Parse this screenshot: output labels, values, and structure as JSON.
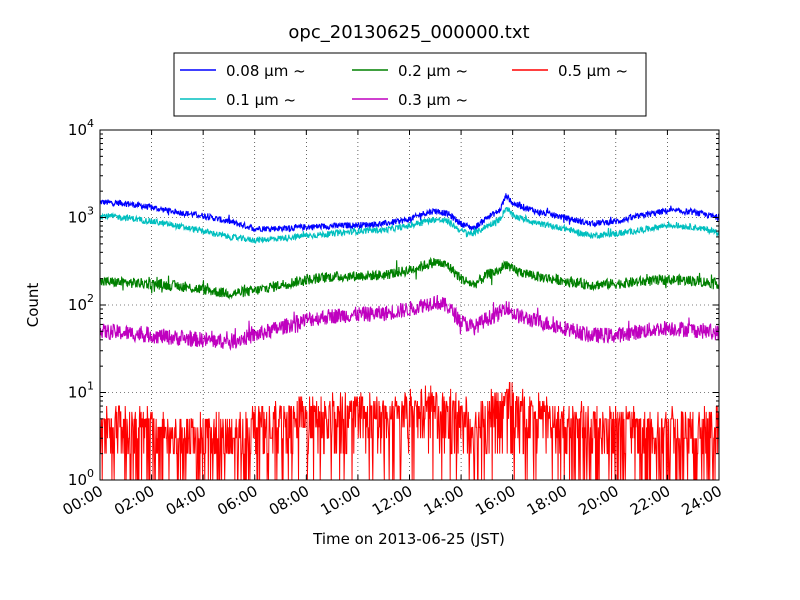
{
  "chart_data": {
    "type": "line",
    "title": "opc_20130625_000000.txt",
    "xlabel": "Time on 2013-06-25 (JST)",
    "ylabel": "Count",
    "x_range": [
      "00:00",
      "24:00"
    ],
    "x_ticks": [
      "00:00",
      "02:00",
      "04:00",
      "06:00",
      "08:00",
      "10:00",
      "12:00",
      "14:00",
      "16:00",
      "18:00",
      "20:00",
      "22:00",
      "24:00"
    ],
    "y_scale": "log",
    "ylim": [
      1,
      10000
    ],
    "y_ticks": [
      {
        "base": "10",
        "exp": "0"
      },
      {
        "base": "10",
        "exp": "1"
      },
      {
        "base": "10",
        "exp": "2"
      },
      {
        "base": "10",
        "exp": "3"
      },
      {
        "base": "10",
        "exp": "4"
      }
    ],
    "grid": true,
    "legend_placement": "top-center (above plot)",
    "series": [
      {
        "name": "0.08 μm ~",
        "color": "#0000ff",
        "x": [
          "00:00",
          "01:00",
          "02:00",
          "03:00",
          "04:00",
          "05:00",
          "06:00",
          "07:00",
          "08:00",
          "09:00",
          "10:00",
          "11:00",
          "12:00",
          "12:30",
          "13:00",
          "13:30",
          "14:00",
          "14:30",
          "15:00",
          "15:30",
          "15:45",
          "16:00",
          "16:30",
          "17:00",
          "18:00",
          "19:00",
          "20:00",
          "21:00",
          "22:00",
          "23:00",
          "24:00"
        ],
        "values": [
          1500,
          1450,
          1300,
          1150,
          1050,
          900,
          750,
          750,
          780,
          800,
          820,
          850,
          950,
          1100,
          1200,
          1100,
          850,
          750,
          1000,
          1200,
          1800,
          1450,
          1300,
          1150,
          1000,
          850,
          900,
          1050,
          1200,
          1150,
          1000
        ]
      },
      {
        "name": "0.1 μm ~",
        "color": "#00bfbf",
        "x": [
          "00:00",
          "01:00",
          "02:00",
          "03:00",
          "04:00",
          "05:00",
          "06:00",
          "07:00",
          "08:00",
          "09:00",
          "10:00",
          "11:00",
          "12:00",
          "12:30",
          "13:00",
          "13:30",
          "14:00",
          "14:30",
          "15:00",
          "15:30",
          "15:45",
          "16:00",
          "16:30",
          "17:00",
          "18:00",
          "19:00",
          "20:00",
          "21:00",
          "22:00",
          "23:00",
          "24:00"
        ],
        "values": [
          1050,
          1000,
          900,
          800,
          700,
          600,
          550,
          580,
          620,
          650,
          700,
          720,
          800,
          900,
          950,
          900,
          700,
          650,
          800,
          950,
          1300,
          1050,
          950,
          850,
          750,
          620,
          650,
          720,
          820,
          780,
          680
        ]
      },
      {
        "name": "0.2 μm ~",
        "color": "#008000",
        "x": [
          "00:00",
          "01:00",
          "02:00",
          "03:00",
          "04:00",
          "05:00",
          "06:00",
          "07:00",
          "08:00",
          "09:00",
          "10:00",
          "11:00",
          "12:00",
          "12:30",
          "13:00",
          "13:30",
          "14:00",
          "14:30",
          "15:00",
          "15:30",
          "15:45",
          "16:00",
          "16:30",
          "17:00",
          "18:00",
          "19:00",
          "20:00",
          "21:00",
          "22:00",
          "23:00",
          "24:00"
        ],
        "values": [
          185,
          180,
          175,
          165,
          150,
          135,
          145,
          170,
          195,
          210,
          215,
          220,
          250,
          280,
          310,
          280,
          200,
          170,
          220,
          250,
          300,
          250,
          230,
          210,
          190,
          170,
          175,
          185,
          195,
          190,
          175
        ]
      },
      {
        "name": "0.3 μm ~",
        "color": "#bf00bf",
        "x": [
          "00:00",
          "01:00",
          "02:00",
          "03:00",
          "04:00",
          "05:00",
          "06:00",
          "07:00",
          "08:00",
          "09:00",
          "10:00",
          "11:00",
          "12:00",
          "12:30",
          "13:00",
          "13:30",
          "14:00",
          "14:30",
          "15:00",
          "15:30",
          "15:45",
          "16:00",
          "16:30",
          "17:00",
          "18:00",
          "19:00",
          "20:00",
          "21:00",
          "22:00",
          "23:00",
          "24:00"
        ],
        "values": [
          50,
          48,
          45,
          42,
          40,
          38,
          45,
          55,
          68,
          75,
          78,
          80,
          90,
          100,
          110,
          95,
          65,
          55,
          70,
          80,
          100,
          80,
          70,
          65,
          55,
          45,
          45,
          50,
          55,
          52,
          48
        ]
      },
      {
        "name": "0.5 μm ~",
        "color": "#ff0000",
        "x": [
          "00:00",
          "01:00",
          "02:00",
          "03:00",
          "04:00",
          "05:00",
          "06:00",
          "07:00",
          "08:00",
          "09:00",
          "10:00",
          "11:00",
          "12:00",
          "12:30",
          "13:00",
          "13:30",
          "14:00",
          "14:30",
          "15:00",
          "15:30",
          "15:45",
          "16:00",
          "16:30",
          "17:00",
          "18:00",
          "19:00",
          "20:00",
          "21:00",
          "22:00",
          "23:00",
          "24:00"
        ],
        "values": [
          3,
          3,
          3,
          2.5,
          2.5,
          2.5,
          3,
          3.5,
          4,
          4,
          4,
          4,
          4.5,
          5,
          5,
          5,
          4,
          3.5,
          4.5,
          5,
          6,
          5,
          4.5,
          4,
          3.5,
          3,
          3,
          3,
          3,
          3,
          3
        ]
      }
    ]
  }
}
